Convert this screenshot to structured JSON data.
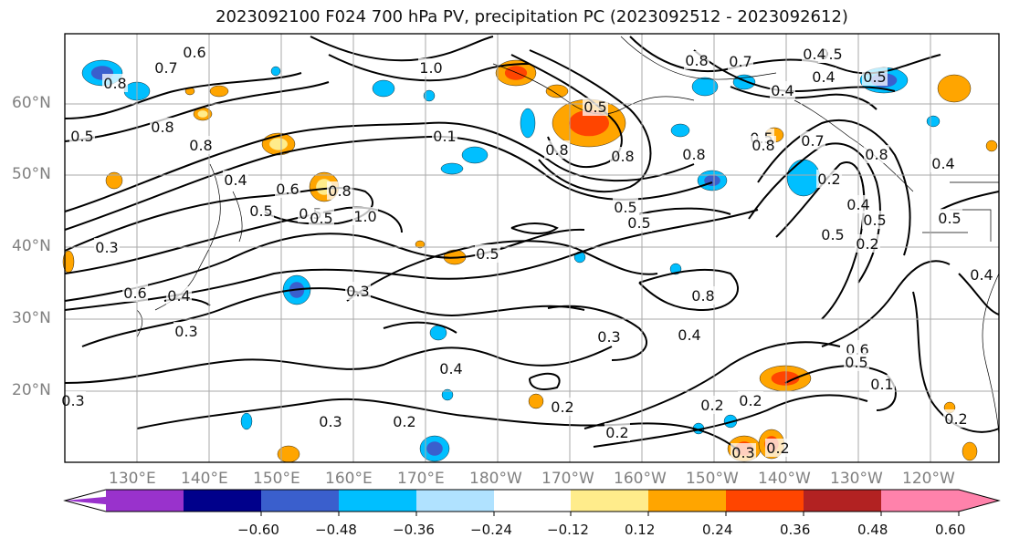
{
  "title": "2023092100 F024 700 hPa PV, precipitation PC (2023092512 - 2023092612)",
  "map": {
    "lat_labels": [
      "60°N",
      "50°N",
      "40°N",
      "30°N",
      "20°N"
    ],
    "lon_labels": [
      "130°E",
      "140°E",
      "150°E",
      "160°E",
      "170°E",
      "180°W",
      "170°W",
      "160°W",
      "150°W",
      "140°W",
      "130°W",
      "120°W"
    ],
    "tick_color": "#808080",
    "grid_color": "#aaaaaa",
    "contour_labels": [
      "0.6",
      "0.7",
      "0.8",
      "0.5",
      "0.8",
      "0.8",
      "0.5",
      "0.4",
      "0.5",
      "0.6",
      "0.8",
      "0.5",
      "1.0",
      "0.3",
      "0.6",
      "0.4",
      "0.3",
      "0.1",
      "1.0",
      "0.8",
      "0.5",
      "0.8",
      "0.8",
      "0.5",
      "0.5",
      "0.5",
      "0.5",
      "0.8",
      "0.4",
      "0.7",
      "0.4",
      "0.5",
      "0.8",
      "0.5",
      "0.3",
      "0.4",
      "0.3",
      "0.4",
      "0.2",
      "0.2",
      "0.2",
      "0.3",
      "0.2",
      "0.5",
      "0.4",
      "0.6",
      "0.4",
      "0.2",
      "0.8",
      "0.7",
      "0.5",
      "0.4",
      "0.8",
      "0.1",
      "0.2",
      "0.4",
      "0.5",
      "0.3",
      "0.2",
      "0.5",
      "0.2",
      "0.2",
      "0.3"
    ]
  },
  "colorbar": {
    "colors": [
      "#9932cc",
      "#00008b",
      "#3a5fcd",
      "#00bfff",
      "#b0e2ff",
      "#ffffff",
      "#ffec8b",
      "#ffa500",
      "#ff4500",
      "#b22222",
      "#ff82ab"
    ],
    "tick_labels": [
      "−0.60",
      "−0.48",
      "−0.36",
      "−0.24",
      "−0.12",
      "0.12",
      "0.24",
      "0.36",
      "0.48",
      "0.60"
    ]
  }
}
